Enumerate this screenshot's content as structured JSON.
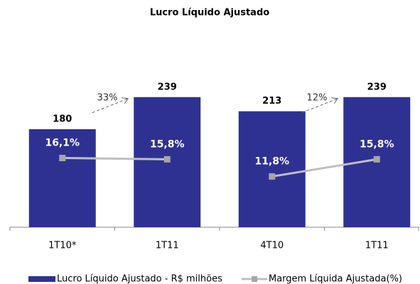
{
  "chart_data": {
    "type": "bar",
    "title": "Lucro Líquido Ajustado",
    "categories": [
      "1T10*",
      "1T11",
      "4T10",
      "1T11"
    ],
    "series": [
      {
        "name": "Lucro Líquido Ajustado - R$ milhões",
        "color": "#2e3192",
        "values": [
          180,
          239,
          213,
          239
        ]
      },
      {
        "name": "Margem Líquida Ajustada(%)",
        "type": "line",
        "axis": "y2",
        "color": "#bfbfbf",
        "marker_color": "#a6a6a6",
        "values": [
          16.1,
          15.8,
          11.8,
          15.8
        ],
        "value_labels": [
          "16,1%",
          "15,8%",
          "11,8%",
          "15,8%"
        ]
      }
    ],
    "annotations": [
      {
        "text": "33%",
        "from": 0,
        "to": 1
      },
      {
        "text": "12%",
        "from": 2,
        "to": 3
      }
    ],
    "ylim": [
      0,
      300
    ],
    "y2lim": [
      0,
      38
    ],
    "legend": "bottom"
  }
}
